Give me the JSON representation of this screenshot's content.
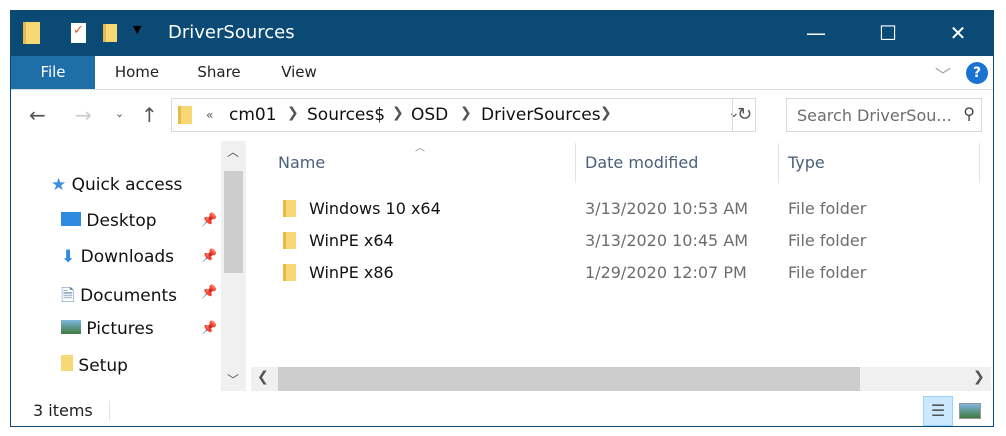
{
  "window": {
    "title": "DriverSources",
    "colors": {
      "titlebar": "#0b4a75",
      "file_tab": "#1e6ea7"
    }
  },
  "ribbon": {
    "tabs": [
      "File",
      "Home",
      "Share",
      "View"
    ],
    "help": "?"
  },
  "address": {
    "overflow": "«",
    "crumbs": [
      "cm01",
      "Sources$",
      "OSD",
      "DriverSources"
    ]
  },
  "search": {
    "placeholder": "Search DriverSou..."
  },
  "sidebar": {
    "items": [
      {
        "label": "Quick access",
        "icon": "star-icon"
      },
      {
        "label": "Desktop",
        "icon": "desktop-icon",
        "pinned": true
      },
      {
        "label": "Downloads",
        "icon": "download-icon",
        "pinned": true
      },
      {
        "label": "Documents",
        "icon": "documents-icon",
        "pinned": true
      },
      {
        "label": "Pictures",
        "icon": "pictures-icon",
        "pinned": true
      },
      {
        "label": "Setup",
        "icon": "folder-icon"
      }
    ]
  },
  "columns": [
    "Name",
    "Date modified",
    "Type"
  ],
  "files": [
    {
      "name": "Windows 10 x64",
      "date": "3/13/2020 10:53 AM",
      "type": "File folder"
    },
    {
      "name": "WinPE x64",
      "date": "3/13/2020 10:45 AM",
      "type": "File folder"
    },
    {
      "name": "WinPE x86",
      "date": "1/29/2020 12:07 PM",
      "type": "File folder"
    }
  ],
  "status": {
    "items": "3 items"
  }
}
